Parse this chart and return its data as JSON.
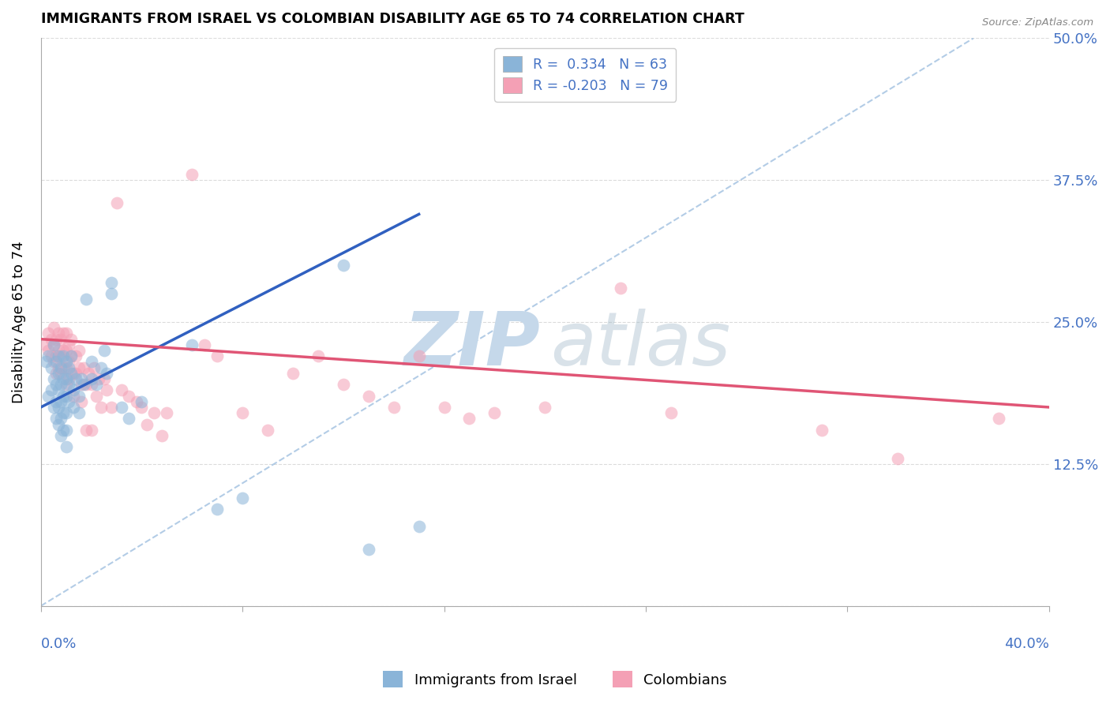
{
  "title": "IMMIGRANTS FROM ISRAEL VS COLOMBIAN DISABILITY AGE 65 TO 74 CORRELATION CHART",
  "source": "Source: ZipAtlas.com",
  "ylabel": "Disability Age 65 to 74",
  "x_min": 0.0,
  "x_max": 40.0,
  "y_min": 0.0,
  "y_max": 50.0,
  "yticks": [
    0.0,
    12.5,
    25.0,
    37.5,
    50.0
  ],
  "ytick_labels": [
    "",
    "12.5%",
    "25.0%",
    "37.5%",
    "50.0%"
  ],
  "legend_r1": "R =  0.334",
  "legend_n1": "N = 63",
  "legend_r2": "R = -0.203",
  "legend_n2": "N = 79",
  "color_blue": "#8ab4d8",
  "color_pink": "#f4a0b5",
  "color_line_blue": "#3060c0",
  "color_line_pink": "#e05575",
  "color_dashed": "#a0c0e0",
  "color_axis_labels": "#4472c4",
  "israel_trend": [
    0.0,
    17.5,
    15.0,
    34.5
  ],
  "colombian_trend": [
    0.0,
    23.5,
    40.0,
    17.5
  ],
  "dashed_line": [
    0.0,
    0.0,
    37.0,
    50.0
  ],
  "israel_points": [
    [
      0.2,
      21.5
    ],
    [
      0.3,
      22.0
    ],
    [
      0.3,
      18.5
    ],
    [
      0.4,
      21.0
    ],
    [
      0.4,
      19.0
    ],
    [
      0.5,
      23.0
    ],
    [
      0.5,
      20.0
    ],
    [
      0.5,
      17.5
    ],
    [
      0.6,
      21.5
    ],
    [
      0.6,
      19.5
    ],
    [
      0.6,
      18.0
    ],
    [
      0.6,
      16.5
    ],
    [
      0.7,
      22.0
    ],
    [
      0.7,
      20.5
    ],
    [
      0.7,
      19.0
    ],
    [
      0.7,
      17.5
    ],
    [
      0.7,
      16.0
    ],
    [
      0.8,
      21.0
    ],
    [
      0.8,
      19.5
    ],
    [
      0.8,
      18.0
    ],
    [
      0.8,
      16.5
    ],
    [
      0.8,
      15.0
    ],
    [
      0.9,
      22.0
    ],
    [
      0.9,
      20.0
    ],
    [
      0.9,
      18.5
    ],
    [
      0.9,
      17.0
    ],
    [
      0.9,
      15.5
    ],
    [
      1.0,
      21.5
    ],
    [
      1.0,
      20.0
    ],
    [
      1.0,
      18.5
    ],
    [
      1.0,
      17.0
    ],
    [
      1.0,
      15.5
    ],
    [
      1.0,
      14.0
    ],
    [
      1.1,
      21.0
    ],
    [
      1.1,
      19.5
    ],
    [
      1.1,
      18.0
    ],
    [
      1.2,
      22.0
    ],
    [
      1.2,
      20.5
    ],
    [
      1.3,
      19.0
    ],
    [
      1.3,
      17.5
    ],
    [
      1.4,
      20.0
    ],
    [
      1.5,
      18.5
    ],
    [
      1.5,
      17.0
    ],
    [
      1.6,
      20.0
    ],
    [
      1.7,
      19.5
    ],
    [
      1.8,
      27.0
    ],
    [
      2.0,
      21.5
    ],
    [
      2.0,
      20.0
    ],
    [
      2.2,
      19.5
    ],
    [
      2.4,
      21.0
    ],
    [
      2.5,
      22.5
    ],
    [
      2.6,
      20.5
    ],
    [
      2.8,
      28.5
    ],
    [
      2.8,
      27.5
    ],
    [
      3.2,
      17.5
    ],
    [
      3.5,
      16.5
    ],
    [
      4.0,
      18.0
    ],
    [
      6.0,
      23.0
    ],
    [
      7.0,
      8.5
    ],
    [
      8.0,
      9.5
    ],
    [
      12.0,
      30.0
    ],
    [
      13.0,
      5.0
    ],
    [
      15.0,
      7.0
    ]
  ],
  "colombian_points": [
    [
      0.2,
      23.0
    ],
    [
      0.3,
      24.0
    ],
    [
      0.3,
      22.5
    ],
    [
      0.4,
      23.5
    ],
    [
      0.4,
      22.0
    ],
    [
      0.5,
      24.5
    ],
    [
      0.5,
      23.0
    ],
    [
      0.5,
      21.5
    ],
    [
      0.6,
      23.5
    ],
    [
      0.6,
      22.0
    ],
    [
      0.6,
      20.5
    ],
    [
      0.7,
      24.0
    ],
    [
      0.7,
      22.5
    ],
    [
      0.7,
      21.0
    ],
    [
      0.8,
      23.5
    ],
    [
      0.8,
      22.0
    ],
    [
      0.8,
      20.5
    ],
    [
      0.9,
      24.0
    ],
    [
      0.9,
      22.5
    ],
    [
      0.9,
      21.0
    ],
    [
      1.0,
      24.0
    ],
    [
      1.0,
      22.5
    ],
    [
      1.0,
      21.0
    ],
    [
      1.0,
      19.5
    ],
    [
      1.1,
      23.0
    ],
    [
      1.1,
      21.5
    ],
    [
      1.1,
      20.0
    ],
    [
      1.2,
      23.5
    ],
    [
      1.2,
      22.0
    ],
    [
      1.3,
      18.5
    ],
    [
      1.3,
      20.5
    ],
    [
      1.4,
      22.0
    ],
    [
      1.4,
      20.5
    ],
    [
      1.5,
      22.5
    ],
    [
      1.5,
      21.0
    ],
    [
      1.6,
      19.5
    ],
    [
      1.6,
      18.0
    ],
    [
      1.7,
      21.0
    ],
    [
      1.8,
      19.5
    ],
    [
      1.8,
      15.5
    ],
    [
      1.9,
      20.5
    ],
    [
      2.0,
      19.5
    ],
    [
      2.0,
      15.5
    ],
    [
      2.1,
      21.0
    ],
    [
      2.2,
      18.5
    ],
    [
      2.3,
      20.0
    ],
    [
      2.4,
      17.5
    ],
    [
      2.5,
      20.0
    ],
    [
      2.6,
      19.0
    ],
    [
      2.8,
      17.5
    ],
    [
      3.0,
      35.5
    ],
    [
      3.2,
      19.0
    ],
    [
      3.5,
      18.5
    ],
    [
      3.8,
      18.0
    ],
    [
      4.0,
      17.5
    ],
    [
      4.2,
      16.0
    ],
    [
      4.5,
      17.0
    ],
    [
      4.8,
      15.0
    ],
    [
      5.0,
      17.0
    ],
    [
      6.0,
      38.0
    ],
    [
      6.5,
      23.0
    ],
    [
      7.0,
      22.0
    ],
    [
      8.0,
      17.0
    ],
    [
      9.0,
      15.5
    ],
    [
      10.0,
      20.5
    ],
    [
      11.0,
      22.0
    ],
    [
      12.0,
      19.5
    ],
    [
      13.0,
      18.5
    ],
    [
      14.0,
      17.5
    ],
    [
      15.0,
      22.0
    ],
    [
      16.0,
      17.5
    ],
    [
      17.0,
      16.5
    ],
    [
      18.0,
      17.0
    ],
    [
      20.0,
      17.5
    ],
    [
      23.0,
      28.0
    ],
    [
      25.0,
      17.0
    ],
    [
      31.0,
      15.5
    ],
    [
      34.0,
      13.0
    ],
    [
      38.0,
      16.5
    ]
  ]
}
